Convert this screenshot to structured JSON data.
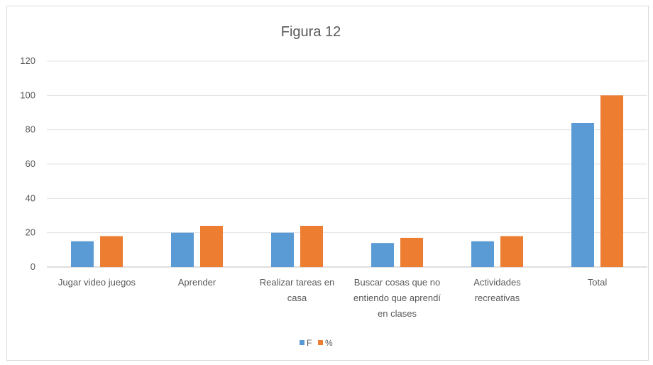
{
  "chart_data": {
    "type": "bar",
    "title": "Figura 12",
    "categories": [
      [
        "Jugar video juegos"
      ],
      [
        "Aprender"
      ],
      [
        "Realizar tareas en",
        "casa"
      ],
      [
        "Buscar cosas que no",
        "entiendo que aprendí",
        "en clases"
      ],
      [
        "Actividades",
        "recreativas"
      ],
      [
        "Total"
      ]
    ],
    "series": [
      {
        "name": "F",
        "color": "#5b9bd5",
        "values": [
          15,
          20,
          20,
          14,
          15,
          84
        ]
      },
      {
        "name": "%",
        "color": "#ed7d31",
        "values": [
          18,
          24,
          24,
          17,
          18,
          100
        ]
      }
    ],
    "xlabel": "",
    "ylabel": "",
    "ylim": [
      0,
      120
    ],
    "yticks": [
      0,
      20,
      40,
      60,
      80,
      100,
      120
    ],
    "grid": true,
    "legend_position": "bottom"
  }
}
